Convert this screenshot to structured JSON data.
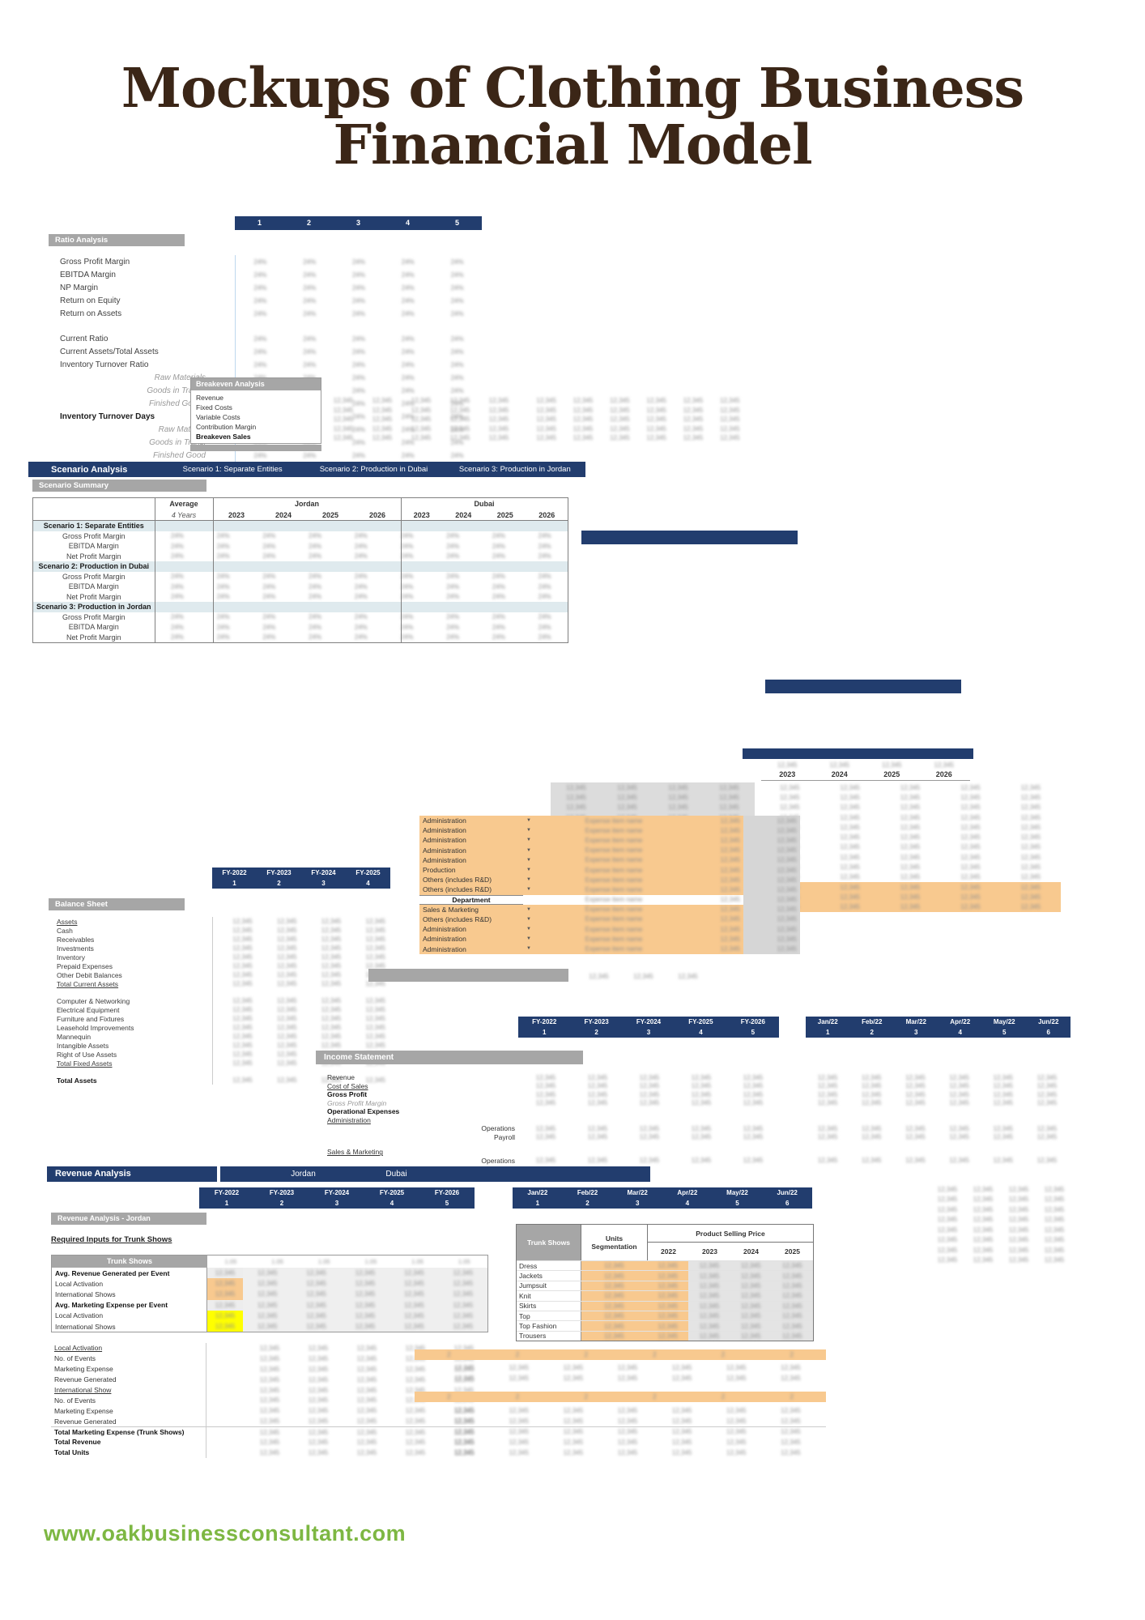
{
  "page": {
    "title_line1": "Mockups of Clothing Business",
    "title_line2": "Financial Model",
    "footer_url": "www.oakbusinessconsultant.com"
  },
  "colors": {
    "navy": "#223D6E",
    "gray_bar": "#A6A6A6",
    "orange": "#F8C98F",
    "yellow": "#FFFF00",
    "band_blue": "#DFEAEE",
    "title_brown": "#3B2617",
    "footer_green": "#7DB742"
  },
  "icons": {
    "dropdown": "▼"
  },
  "placeholders": {
    "number": "12,345",
    "percent": "24%",
    "small": "2",
    "factor": "1.05",
    "text": "Expense item name"
  },
  "ratio": {
    "header_title": "Ratio Analysis",
    "columns": [
      "1",
      "2",
      "3",
      "4",
      "5"
    ],
    "rows": [
      {
        "label": "Gross Profit Margin"
      },
      {
        "label": "EBITDA Margin"
      },
      {
        "label": "NP Margin"
      },
      {
        "label": "Return on Equity"
      },
      {
        "label": "Return on Assets"
      },
      {
        "label": "",
        "style": "spacer"
      },
      {
        "label": "Current Ratio"
      },
      {
        "label": "Current Assets/Total Assets"
      },
      {
        "label": "Inventory Turnover Ratio"
      },
      {
        "label": "Raw Materials",
        "style": "sub"
      },
      {
        "label": "Goods in Transit",
        "style": "sub"
      },
      {
        "label": "Finished Goods",
        "style": "sub"
      },
      {
        "label": "Inventory Turnover Days",
        "style": "bold"
      },
      {
        "label": "Raw Material",
        "style": "sub"
      },
      {
        "label": "Goods in Transi",
        "style": "sub"
      },
      {
        "label": "Finished Good",
        "style": "sub"
      }
    ]
  },
  "breakeven": {
    "header_title": "Breakeven Analysis",
    "rows": [
      {
        "label": "Revenue"
      },
      {
        "label": "Fixed Costs"
      },
      {
        "label": "Variable Costs"
      },
      {
        "label": "Contribution Margin"
      },
      {
        "label": "Breakeven Sales",
        "style": "bold"
      }
    ]
  },
  "scenario": {
    "bar_title": "Scenario Analysis",
    "scenario1": "Scenario 1: Separate Entities",
    "scenario2": "Scenario 2: Production in Dubai",
    "scenario3": "Scenario 3: Production in Jordan",
    "summary_title": "Scenario Summary",
    "avg_header": "Average",
    "avg_sub": "4 Years",
    "region1": "Jordan",
    "region2": "Dubai",
    "years": [
      "2023",
      "2024",
      "2025",
      "2026"
    ],
    "table_rows": [
      {
        "label": "Scenario 1: Separate Entities",
        "style": "band"
      },
      {
        "label": "Gross Profit Margin"
      },
      {
        "label": "EBITDA Margin"
      },
      {
        "label": "Net Profit Margin"
      },
      {
        "label": "Scenario 2: Production in Dubai",
        "style": "band"
      },
      {
        "label": "Gross Profit Margin"
      },
      {
        "label": "EBITDA Margin"
      },
      {
        "label": "Net Profit Margin"
      },
      {
        "label": "Scenario 3: Production in Jordan",
        "style": "band"
      },
      {
        "label": "Gross Profit Margin"
      },
      {
        "label": "EBITDA Margin"
      },
      {
        "label": "Net Profit Margin"
      }
    ]
  },
  "right_table": {
    "years": [
      "2023",
      "2024",
      "2025",
      "2026"
    ]
  },
  "department": {
    "rows": [
      {
        "label": "Administration"
      },
      {
        "label": "Administration"
      },
      {
        "label": "Administration"
      },
      {
        "label": "Administration"
      },
      {
        "label": "Administration"
      },
      {
        "label": "Production"
      },
      {
        "label": "Others (includes R&D)"
      },
      {
        "label": "Others (includes R&D)"
      },
      {
        "label": "Department",
        "style": "dephdr"
      },
      {
        "label": "Sales & Marketing"
      },
      {
        "label": "Others (includes R&D)"
      },
      {
        "label": "Administration"
      },
      {
        "label": "Administration"
      },
      {
        "label": "Administration"
      }
    ]
  },
  "balance": {
    "header_title": "Balance Sheet",
    "fy_columns": [
      {
        "y": "FY-2022",
        "n": "1"
      },
      {
        "y": "FY-2023",
        "n": "2"
      },
      {
        "y": "FY-2024",
        "n": "3"
      },
      {
        "y": "FY-2025",
        "n": "4"
      }
    ],
    "rows": [
      {
        "label": "Assets",
        "style": "underline"
      },
      {
        "label": "Cash"
      },
      {
        "label": "Receivables"
      },
      {
        "label": "Investments"
      },
      {
        "label": "Inventory"
      },
      {
        "label": "Prepaid Expenses"
      },
      {
        "label": "Other Debit Balances"
      },
      {
        "label": "Total Current Assets",
        "style": "underline"
      },
      {
        "label": "",
        "style": "spacer"
      },
      {
        "label": "Computer & Networking"
      },
      {
        "label": "Electrical Equipment"
      },
      {
        "label": "Furniture and Fixtures"
      },
      {
        "label": "Leasehold Improvements"
      },
      {
        "label": "Mannequin"
      },
      {
        "label": "Intangible Assets"
      },
      {
        "label": "Right of Use Assets"
      },
      {
        "label": "Total Fixed Assets",
        "style": "underline"
      },
      {
        "label": "",
        "style": "spacer"
      },
      {
        "label": "Total Assets",
        "style": "bold"
      }
    ]
  },
  "income": {
    "header_title": "Income Statement",
    "fy_columns": [
      {
        "y": "FY-2022",
        "n": "1"
      },
      {
        "y": "FY-2023",
        "n": "2"
      },
      {
        "y": "FY-2024",
        "n": "3"
      },
      {
        "y": "FY-2025",
        "n": "4"
      },
      {
        "y": "FY-2026",
        "n": "5"
      }
    ],
    "month_columns": [
      {
        "y": "Jan/22",
        "n": "1"
      },
      {
        "y": "Feb/22",
        "n": "2"
      },
      {
        "y": "Mar/22",
        "n": "3"
      },
      {
        "y": "Apr/22",
        "n": "4"
      },
      {
        "y": "May/22",
        "n": "5"
      },
      {
        "y": "Jun/22",
        "n": "6"
      }
    ],
    "rows": [
      {
        "label": "Revenue"
      },
      {
        "label": "Cost of Sales",
        "style": "underline"
      },
      {
        "label": "Gross Profit",
        "style": "bold"
      },
      {
        "label": "Gross Profit Margin",
        "style": "sub"
      },
      {
        "label": "Operational Expenses",
        "style": "bold novals"
      },
      {
        "label": "Administration",
        "style": "underline novals"
      },
      {
        "label": "Operations",
        "style": "indent"
      },
      {
        "label": "Payroll",
        "style": "indent"
      },
      {
        "label": "Sales & Marketing",
        "style": "underline novals gap"
      },
      {
        "label": "Operations",
        "style": "indent"
      }
    ]
  },
  "revenue": {
    "bar_title": "Revenue Analysis",
    "region1": "Jordan",
    "region2": "Dubai",
    "fy_columns": [
      {
        "y": "FY-2022",
        "n": "1"
      },
      {
        "y": "FY-2023",
        "n": "2"
      },
      {
        "y": "FY-2024",
        "n": "3"
      },
      {
        "y": "FY-2025",
        "n": "4"
      },
      {
        "y": "FY-2026",
        "n": "5"
      }
    ],
    "month_columns": [
      {
        "y": "Jan/22",
        "n": "1"
      },
      {
        "y": "Feb/22",
        "n": "2"
      },
      {
        "y": "Mar/22",
        "n": "3"
      },
      {
        "y": "Apr/22",
        "n": "4"
      },
      {
        "y": "May/22",
        "n": "5"
      },
      {
        "y": "Jun/22",
        "n": "6"
      }
    ],
    "section_title": "Revenue Analysis - Jordan",
    "required_inputs_label": "Required Inputs for Trunk Shows",
    "trunk_header": "Trunk Shows",
    "trunk_rows": [
      {
        "label": "Avg. Revenue Generated per Event",
        "style": "bold"
      },
      {
        "label": "Local Activation",
        "style": "hl-orange"
      },
      {
        "label": "International Shows",
        "style": "hl-orange"
      },
      {
        "label": "Avg. Marketing Expense per Event",
        "style": "bold"
      },
      {
        "label": "Local Activation",
        "style": "hl-yellow"
      },
      {
        "label": "International Shows",
        "style": "hl-yellow"
      }
    ],
    "detail_rows": [
      {
        "label": "Local Activation",
        "style": "underline"
      },
      {
        "label": "No. of Events"
      },
      {
        "label": "Marketing Expense"
      },
      {
        "label": "Revenue Generated"
      },
      {
        "label": "International Show",
        "style": "underline"
      },
      {
        "label": "No. of Events"
      },
      {
        "label": "Marketing Expense"
      },
      {
        "label": "Revenue Generated"
      },
      {
        "label": "Total Marketing Expense (Trunk Shows)",
        "style": "bold tline"
      },
      {
        "label": "Total Revenue",
        "style": "bold"
      },
      {
        "label": "Total Units",
        "style": "bold"
      }
    ]
  },
  "product": {
    "corner_header": "Trunk Shows",
    "units_header": "Units Segmentation",
    "price_header": "Product Selling Price",
    "years": [
      "2022",
      "2023",
      "2024",
      "2025"
    ],
    "rows": [
      {
        "label": "Dress"
      },
      {
        "label": "Jackets"
      },
      {
        "label": "Jumpsuit"
      },
      {
        "label": "Knit"
      },
      {
        "label": "Skirts"
      },
      {
        "label": "Top"
      },
      {
        "label": "Top Fashion"
      },
      {
        "label": "Trousers"
      }
    ]
  }
}
